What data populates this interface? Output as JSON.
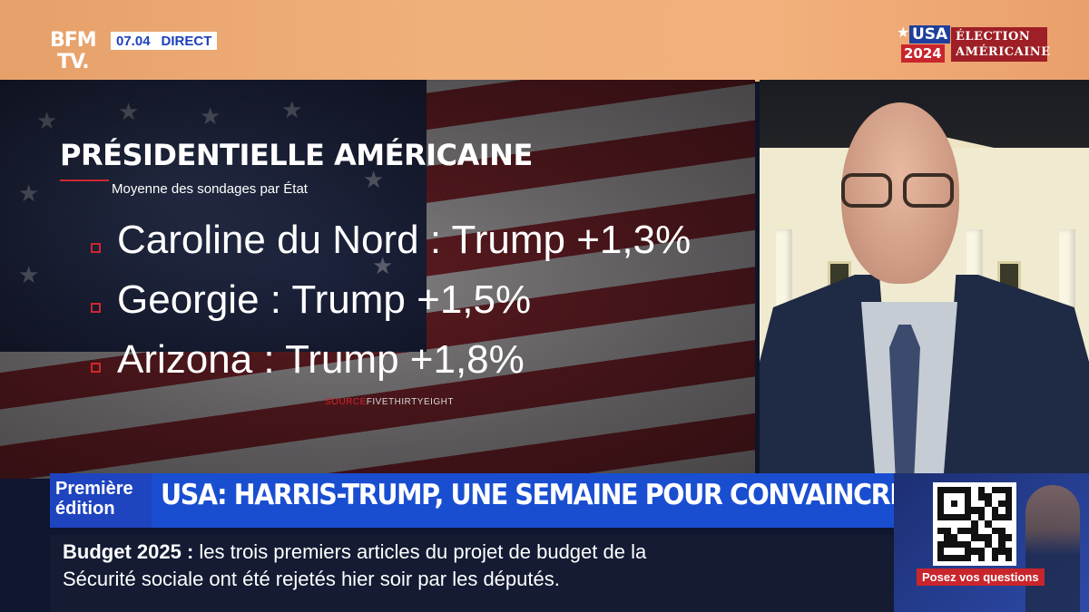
{
  "channel": {
    "logo_line1": "BFM",
    "logo_line2": "TV.",
    "time": "07.04",
    "live_label": "DIRECT"
  },
  "badge": {
    "usa": "USA",
    "year": "2024",
    "line1": "ÉLECTION",
    "line2": "AMÉRICAINE"
  },
  "graphic": {
    "title": "PRÉSIDENTIELLE AMÉRICAINE",
    "subtitle": "Moyenne des sondages par État",
    "items": [
      {
        "text": "Caroline du Nord : Trump +1,3%"
      },
      {
        "text": "Georgie : Trump +1,5%"
      },
      {
        "text": "Arizona : Trump +1,8%"
      }
    ],
    "source_label": "SOURCE",
    "source_name": "FIVETHIRTYEIGHT"
  },
  "banner": {
    "edition_line1": "Première",
    "edition_line2": "édition",
    "headline": "USA: HARRIS-TRUMP, UNE SEMAINE POUR CONVAINCRE",
    "ticker_label": "Budget 2025",
    "ticker_sep": " : ",
    "ticker_line1": "les trois premiers articles du projet de budget de la",
    "ticker_line2": "Sécurité sociale ont été rejetés hier soir par les députés."
  },
  "qr": {
    "cta": "Posez vos questions"
  },
  "colors": {
    "accent_blue": "#1a4ed1",
    "accent_red": "#d0262e",
    "top_band": "#f0b07a"
  }
}
